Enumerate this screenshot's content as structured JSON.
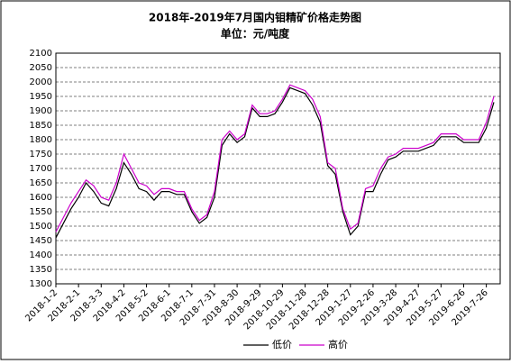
{
  "chart_data": {
    "type": "line",
    "title": "2018年-2019年7月国内钼精矿价格走势图",
    "subtitle": "单位：元/吨度",
    "categories": [
      "2018-1-2",
      null,
      null,
      "2018-2-1",
      null,
      null,
      "2018-3-3",
      null,
      null,
      "2018-4-2",
      null,
      null,
      "2018-5-2",
      null,
      null,
      "2018-6-1",
      null,
      null,
      "2018-7-1",
      null,
      null,
      "2018-7-31",
      null,
      null,
      "2018-8-30",
      null,
      null,
      "2018-9-29",
      null,
      null,
      "2018-10-29",
      null,
      null,
      "2018-11-28",
      null,
      null,
      "2018-12-28",
      null,
      null,
      "2019-1-27",
      null,
      null,
      "2019-2-26",
      null,
      null,
      "2019-3-28",
      null,
      null,
      "2019-4-27",
      null,
      null,
      "2019-5-27",
      null,
      null,
      "2019-6-26",
      null,
      null,
      "2019-7-26",
      null
    ],
    "series": [
      {
        "name": "低价",
        "color": "#000000",
        "values": [
          1460,
          1510,
          1560,
          1600,
          1650,
          1620,
          1580,
          1570,
          1630,
          1720,
          1680,
          1630,
          1620,
          1590,
          1620,
          1620,
          1610,
          1610,
          1550,
          1510,
          1530,
          1600,
          1780,
          1820,
          1790,
          1810,
          1910,
          1880,
          1880,
          1890,
          1930,
          1980,
          1970,
          1960,
          1920,
          1860,
          1710,
          1680,
          1550,
          1470,
          1500,
          1620,
          1620,
          1680,
          1730,
          1740,
          1760,
          1760,
          1760,
          1770,
          1780,
          1810,
          1810,
          1810,
          1790,
          1790,
          1790,
          1840,
          1930
        ]
      },
      {
        "name": "高价",
        "color": "#cc00cc",
        "values": [
          1480,
          1530,
          1580,
          1620,
          1660,
          1640,
          1600,
          1590,
          1650,
          1750,
          1700,
          1650,
          1640,
          1610,
          1630,
          1630,
          1620,
          1620,
          1560,
          1520,
          1540,
          1620,
          1800,
          1830,
          1800,
          1820,
          1920,
          1890,
          1890,
          1900,
          1940,
          1990,
          1980,
          1970,
          1940,
          1880,
          1720,
          1700,
          1560,
          1490,
          1510,
          1630,
          1640,
          1700,
          1740,
          1750,
          1770,
          1770,
          1770,
          1780,
          1790,
          1820,
          1820,
          1820,
          1800,
          1800,
          1800,
          1860,
          1950
        ]
      }
    ],
    "ylim": [
      1300,
      2100
    ],
    "yticks": [
      1300,
      1350,
      1400,
      1450,
      1500,
      1550,
      1600,
      1650,
      1700,
      1750,
      1800,
      1850,
      1900,
      1950,
      2000,
      2050,
      2100
    ],
    "grid": true,
    "legend": "bottom"
  }
}
